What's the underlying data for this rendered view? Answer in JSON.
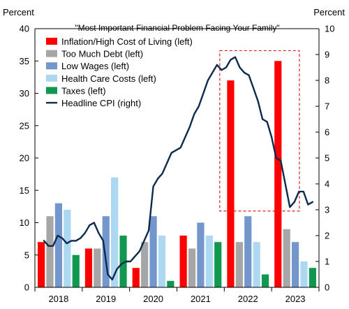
{
  "chart_data": {
    "type": "bar",
    "title": "\"Most Important Financial Problem Facing Your Family\"",
    "left_axis_label": "Percent",
    "right_axis_label": "Percent",
    "categories": [
      "2018",
      "2019",
      "2020",
      "2021",
      "2022",
      "2023"
    ],
    "ylim_left": [
      0,
      40
    ],
    "ylim_right": [
      0,
      10
    ],
    "yticks_left": [
      "0",
      "5",
      "10",
      "15",
      "20",
      "25",
      "30",
      "35",
      "40"
    ],
    "yticks_right": [
      "0",
      "1",
      "2",
      "3",
      "4",
      "5",
      "6",
      "7",
      "8",
      "9",
      "10"
    ],
    "grid": false,
    "legend_position": "top-left",
    "series": [
      {
        "name": "Inflation/High Cost of Living (left)",
        "color": "#ff0000",
        "values": [
          7,
          6,
          3,
          8,
          32,
          35
        ]
      },
      {
        "name": "Too Much Debt (left)",
        "color": "#a6a6a6",
        "values": [
          11,
          6,
          7,
          6,
          7,
          9
        ]
      },
      {
        "name": "Low Wages (left)",
        "color": "#7396cc",
        "values": [
          13,
          11,
          11,
          10,
          11,
          7
        ]
      },
      {
        "name": "Health Care Costs (left)",
        "color": "#add8f2",
        "values": [
          12,
          17,
          8,
          8,
          7,
          4
        ]
      },
      {
        "name": "Taxes (left)",
        "color": "#109850",
        "values": [
          5,
          8,
          1,
          7,
          2,
          3
        ]
      }
    ],
    "line_series": {
      "name": "Headline CPI (right)",
      "color": "#0d2a4d",
      "axis": "right",
      "x": [
        2017.7,
        2017.8,
        2017.9,
        2018.0,
        2018.1,
        2018.2,
        2018.3,
        2018.4,
        2018.5,
        2018.6,
        2018.7,
        2018.8,
        2018.9,
        2019.0,
        2019.1,
        2019.2,
        2019.3,
        2019.4,
        2019.5,
        2019.6,
        2019.7,
        2019.8,
        2019.9,
        2020.0,
        2020.1,
        2020.2,
        2020.3,
        2020.4,
        2020.5,
        2020.6,
        2020.7,
        2020.8,
        2020.9,
        2021.0,
        2021.1,
        2021.2,
        2021.3,
        2021.4,
        2021.5,
        2021.6,
        2021.7,
        2021.8,
        2021.9,
        2022.0,
        2022.1,
        2022.2,
        2022.3,
        2022.4,
        2022.5,
        2022.6,
        2022.7,
        2022.8,
        2022.9,
        2023.0,
        2023.1,
        2023.2,
        2023.3,
        2023.4,
        2023.5,
        2023.6
      ],
      "values": [
        1.8,
        1.6,
        1.6,
        2.0,
        1.9,
        1.7,
        1.8,
        1.8,
        1.9,
        2.1,
        2.4,
        2.5,
        2.1,
        1.8,
        0.5,
        0.3,
        0.7,
        0.9,
        1.0,
        1.0,
        1.2,
        1.4,
        1.8,
        2.2,
        3.9,
        4.2,
        4.4,
        4.8,
        5.2,
        5.3,
        5.4,
        5.8,
        6.2,
        6.7,
        7.0,
        7.5,
        8.0,
        8.3,
        8.6,
        8.4,
        8.5,
        8.8,
        8.9,
        8.5,
        8.3,
        8.2,
        7.7,
        7.2,
        6.5,
        6.4,
        5.8,
        5.0,
        4.9,
        4.0,
        3.1,
        3.3,
        3.7,
        3.7,
        3.2,
        3.3
      ]
    }
  }
}
